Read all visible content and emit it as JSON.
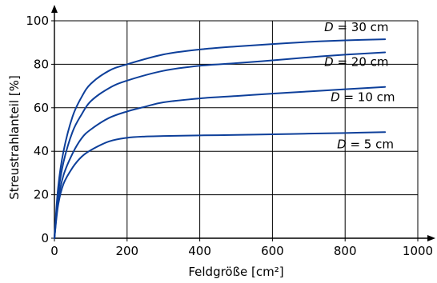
{
  "chart_data": {
    "type": "line",
    "title": "",
    "xlabel": "Feldgröße [cm²]",
    "ylabel": "Streustrahlanteil [%]",
    "xlim": [
      0,
      1000
    ],
    "ylim": [
      0,
      100
    ],
    "xticks": [
      0,
      200,
      400,
      600,
      800,
      1000
    ],
    "yticks": [
      0,
      20,
      40,
      60,
      80,
      100
    ],
    "grid": true,
    "legend": "inline labels at line ends",
    "line_color": "#0d3f9a",
    "series": [
      {
        "name": "D = 30 cm",
        "label_var": "D",
        "label_rest": " = 30 cm",
        "x": [
          0,
          10,
          25,
          50,
          75,
          100,
          150,
          200,
          300,
          400,
          500,
          600,
          700,
          800,
          910
        ],
        "y": [
          0,
          23,
          40,
          56,
          65,
          71,
          77,
          80,
          84.5,
          86.8,
          88.2,
          89.3,
          90.3,
          91.0,
          91.5
        ]
      },
      {
        "name": "D = 20 cm",
        "label_var": "D",
        "label_rest": " = 20 cm",
        "x": [
          0,
          10,
          25,
          50,
          75,
          100,
          150,
          200,
          300,
          400,
          500,
          600,
          700,
          800,
          910
        ],
        "y": [
          0,
          20,
          35,
          49,
          57,
          63,
          69,
          72.5,
          77,
          79.3,
          80.5,
          81.8,
          83.2,
          84.4,
          85.5
        ]
      },
      {
        "name": "D = 10 cm",
        "label_var": "D",
        "label_rest": " = 10 cm",
        "x": [
          0,
          10,
          25,
          50,
          75,
          100,
          150,
          200,
          250,
          300,
          400,
          500,
          600,
          700,
          800,
          910
        ],
        "y": [
          0,
          17,
          29,
          39,
          46,
          50,
          55.3,
          58.3,
          60.5,
          62.5,
          64.3,
          65.4,
          66.5,
          67.5,
          68.5,
          69.6
        ]
      },
      {
        "name": "D = 5 cm",
        "label_var": "D",
        "label_rest": " = 5 cm",
        "x": [
          0,
          10,
          25,
          50,
          75,
          100,
          150,
          200,
          250,
          300,
          400,
          500,
          600,
          700,
          800,
          910
        ],
        "y": [
          0,
          15,
          25,
          32.5,
          37.5,
          40.5,
          44.5,
          46.2,
          46.8,
          47.0,
          47.3,
          47.5,
          47.8,
          48.1,
          48.4,
          48.8
        ]
      }
    ]
  }
}
